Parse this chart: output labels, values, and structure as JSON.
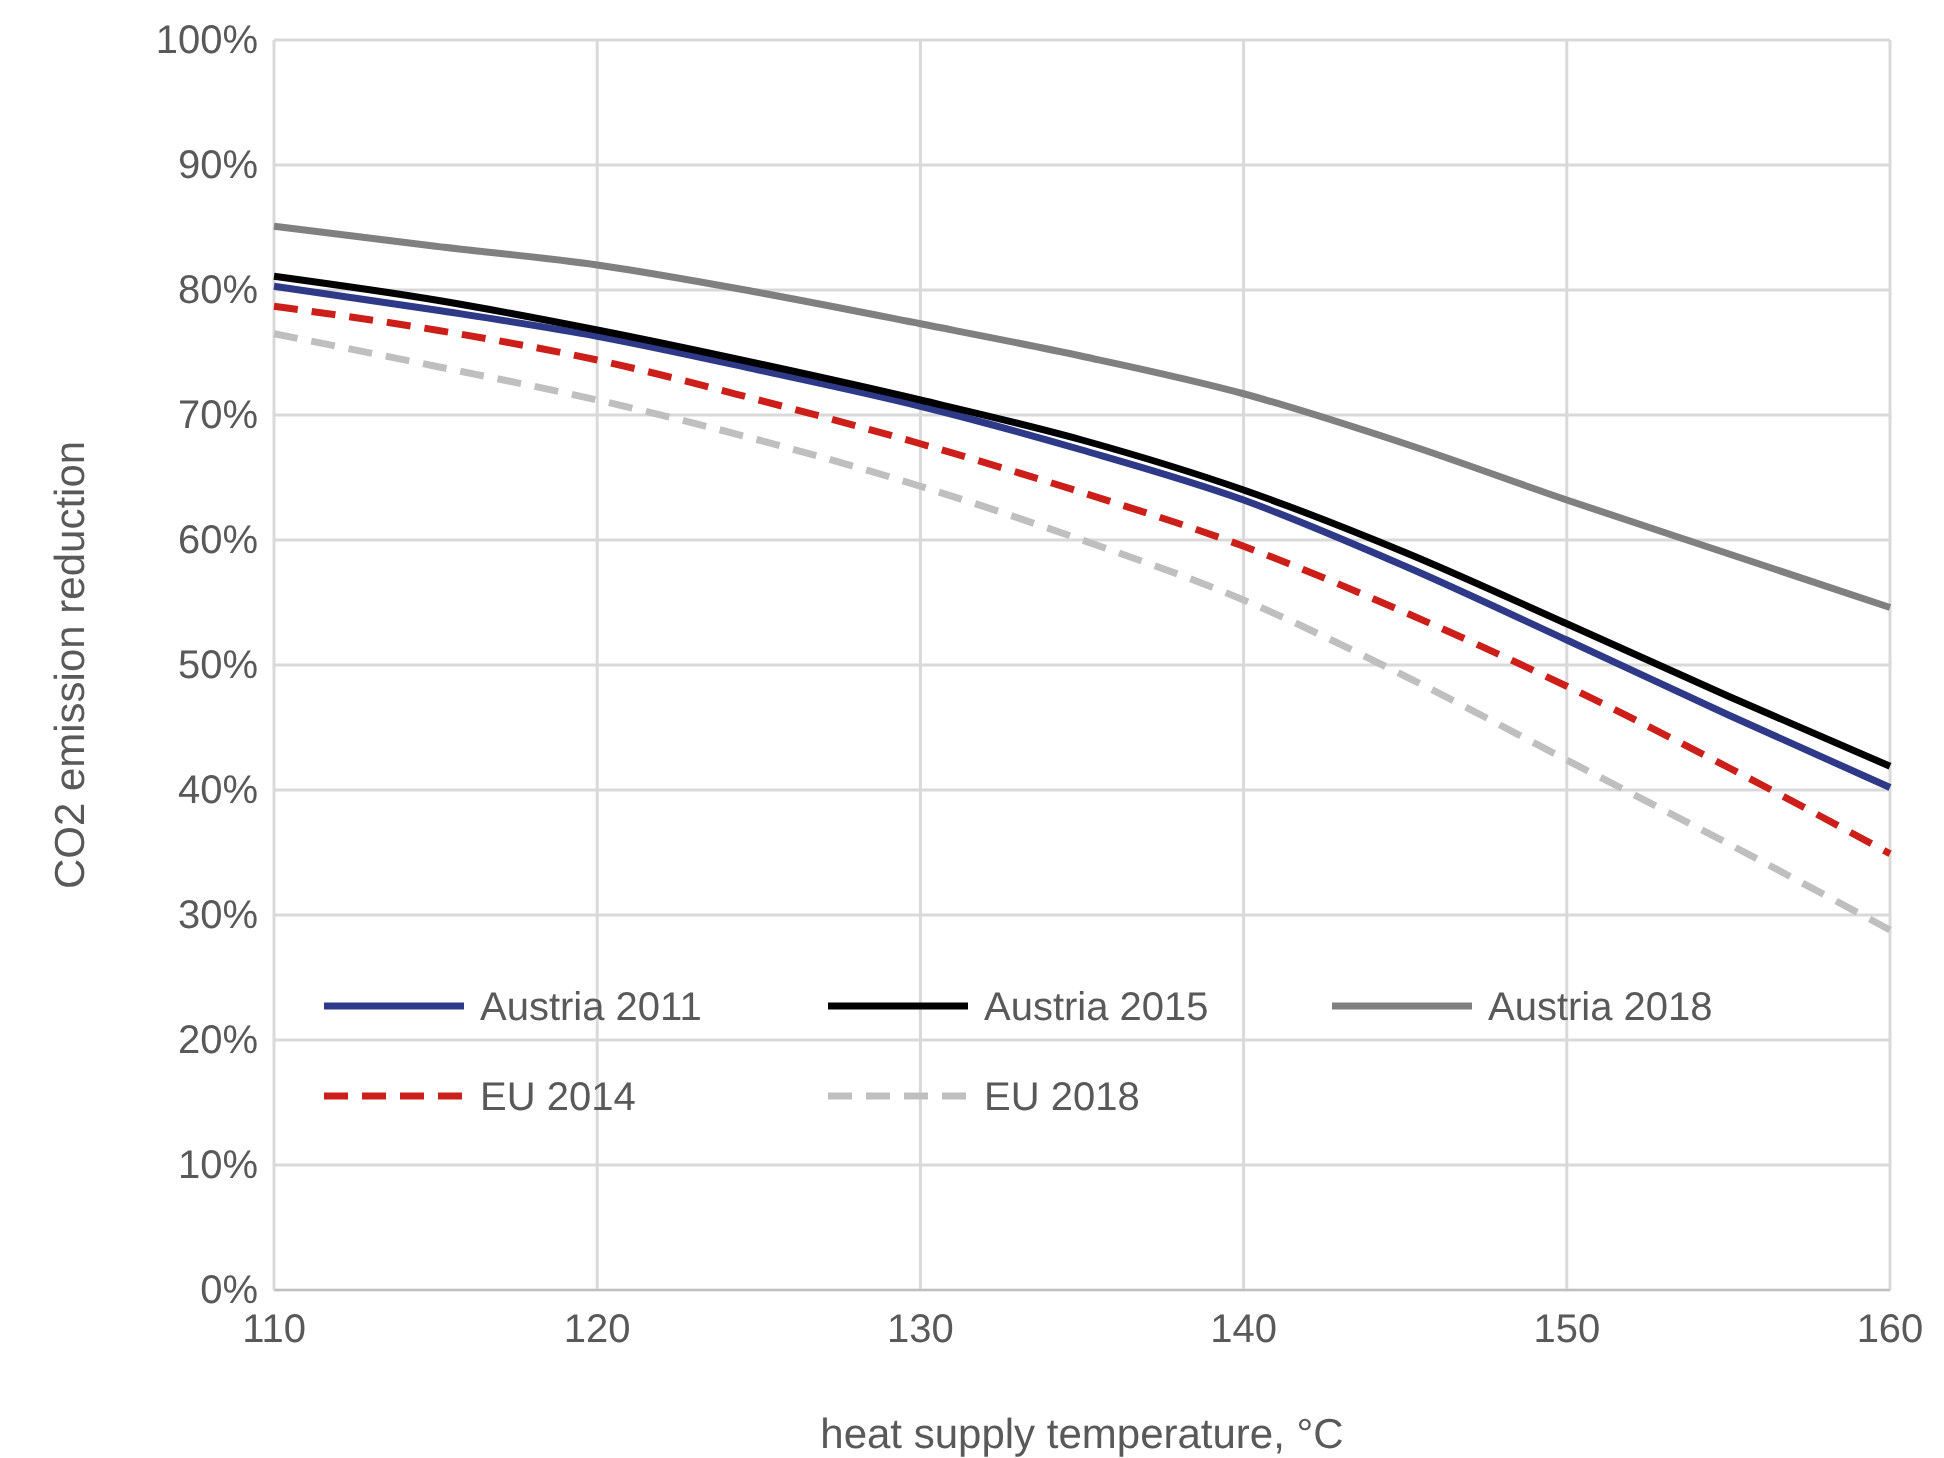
{
  "chart_data": {
    "type": "line",
    "xlabel": "heat supply temperature, °C",
    "ylabel": "CO2 emission reduction",
    "x": [
      110,
      115,
      120,
      125,
      130,
      135,
      140,
      145,
      150,
      155,
      160
    ],
    "series": [
      {
        "name": "Austria 2011",
        "color": "#2e3a87",
        "line_style": "solid",
        "values": [
          80.3,
          78.4,
          76.3,
          73.6,
          70.7,
          67.2,
          63.2,
          57.9,
          52,
          46,
          40.2
        ]
      },
      {
        "name": "Austria 2015",
        "color": "#000000",
        "line_style": "solid",
        "values": [
          81.1,
          79.2,
          76.8,
          74.1,
          71.2,
          68,
          64,
          59,
          53.3,
          47.5,
          41.9
        ]
      },
      {
        "name": "Austria 2018",
        "color": "#808080",
        "line_style": "solid",
        "values": [
          85.1,
          83.5,
          82,
          79.8,
          77.3,
          74.7,
          71.7,
          67.7,
          63.2,
          58.9,
          54.6
        ]
      },
      {
        "name": "EU 2014",
        "color": "#cc1f1a",
        "line_style": "dashed",
        "values": [
          78.7,
          76.8,
          74.4,
          71.2,
          67.7,
          63.8,
          59.5,
          54.2,
          48.3,
          41.8,
          34.9
        ]
      },
      {
        "name": "EU 2018",
        "color": "#bfbfbf",
        "line_style": "dashed",
        "values": [
          76.5,
          73.9,
          71.2,
          68,
          64.3,
          60,
          55.2,
          49.1,
          42.4,
          35.7,
          28.8
        ]
      }
    ],
    "xlim": [
      110,
      160
    ],
    "xticks": [
      110,
      120,
      130,
      140,
      150,
      160
    ],
    "ylim": [
      0,
      100
    ],
    "yticks": [
      {
        "value": 0,
        "label": "0%"
      },
      {
        "value": 10,
        "label": "10%"
      },
      {
        "value": 20,
        "label": "20%"
      },
      {
        "value": 30,
        "label": "30%"
      },
      {
        "value": 40,
        "label": "40%"
      },
      {
        "value": 50,
        "label": "50%"
      },
      {
        "value": 60,
        "label": "60%"
      },
      {
        "value": 70,
        "label": "70%"
      },
      {
        "value": 80,
        "label": "80%"
      },
      {
        "value": 90,
        "label": "90%"
      },
      {
        "value": 100,
        "label": "100%"
      }
    ],
    "grid": true,
    "legend": "bottom",
    "marker": "none"
  }
}
